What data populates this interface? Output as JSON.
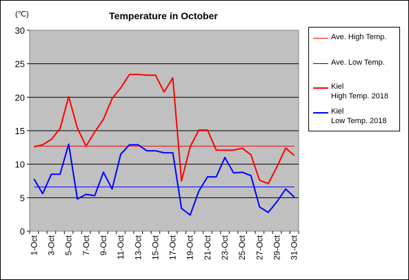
{
  "chart_data": {
    "type": "line",
    "title": "Temperature in October",
    "unit_label": "(℃)",
    "ylim": [
      0,
      30
    ],
    "yticks": [
      0,
      5,
      10,
      15,
      20,
      25,
      30
    ],
    "categories": [
      "1-Oct",
      "2-Oct",
      "3-Oct",
      "4-Oct",
      "5-Oct",
      "6-Oct",
      "7-Oct",
      "8-Oct",
      "9-Oct",
      "10-Oct",
      "11-Oct",
      "12-Oct",
      "13-Oct",
      "14-Oct",
      "15-Oct",
      "16-Oct",
      "17-Oct",
      "18-Oct",
      "19-Oct",
      "20-Oct",
      "21-Oct",
      "22-Oct",
      "23-Oct",
      "24-Oct",
      "25-Oct",
      "26-Oct",
      "27-Oct",
      "28-Oct",
      "29-Oct",
      "30-Oct",
      "31-Oct"
    ],
    "xtick_labels": [
      "1-Oct",
      "3-Oct",
      "5-Oct",
      "7-Oct",
      "9-Oct",
      "11-Oct",
      "13-Oct",
      "15-Oct",
      "17-Oct",
      "19-Oct",
      "21-Oct",
      "23-Oct",
      "25-Oct",
      "27-Oct",
      "29-Oct",
      "31-Oct"
    ],
    "grid": true,
    "legend_position": "right",
    "series": [
      {
        "name": "Ave. High Temp.",
        "color": "#ff0000",
        "width": 1,
        "values": [
          12.7,
          12.7,
          12.7,
          12.7,
          12.7,
          12.7,
          12.7,
          12.7,
          12.7,
          12.7,
          12.7,
          12.7,
          12.7,
          12.7,
          12.7,
          12.7,
          12.7,
          12.7,
          12.7,
          12.7,
          12.7,
          12.7,
          12.7,
          12.7,
          12.7,
          12.7,
          12.7,
          12.7,
          12.7,
          12.7,
          12.7
        ]
      },
      {
        "name": "Ave. Low Temp.",
        "color": "#0000ff",
        "width": 1,
        "values": [
          6.6,
          6.6,
          6.6,
          6.6,
          6.6,
          6.6,
          6.6,
          6.6,
          6.6,
          6.6,
          6.6,
          6.6,
          6.6,
          6.6,
          6.6,
          6.6,
          6.6,
          6.6,
          6.6,
          6.6,
          6.6,
          6.6,
          6.6,
          6.6,
          6.6,
          6.6,
          6.6,
          6.6,
          6.6,
          6.6,
          6.6
        ]
      },
      {
        "name": "Kiel High Temp. 2018",
        "name_lines": [
          "Kiel",
          "High Temp. 2018"
        ],
        "color": "#ff0000",
        "width": 2,
        "values": [
          12.6,
          12.9,
          13.7,
          15.3,
          20.1,
          15.4,
          12.7,
          14.8,
          16.7,
          19.8,
          21.4,
          23.4,
          23.4,
          23.3,
          23.3,
          20.8,
          22.9,
          7.5,
          12.6,
          15.1,
          15.1,
          12.1,
          12.1,
          12.1,
          12.4,
          11.4,
          7.6,
          7.1,
          9.6,
          12.4,
          11.3
        ]
      },
      {
        "name": "Kiel Low Temp. 2018",
        "name_lines": [
          "Kiel",
          "Low Temp. 2018"
        ],
        "color": "#0000ff",
        "width": 2,
        "values": [
          7.8,
          5.6,
          8.5,
          8.5,
          13.0,
          4.8,
          5.5,
          5.3,
          8.8,
          6.3,
          11.5,
          12.9,
          12.9,
          12.0,
          12.0,
          11.7,
          11.7,
          3.4,
          2.4,
          6.0,
          8.1,
          8.1,
          11.0,
          8.7,
          8.8,
          8.3,
          3.6,
          2.8,
          4.4,
          6.3,
          5.1
        ]
      }
    ]
  }
}
